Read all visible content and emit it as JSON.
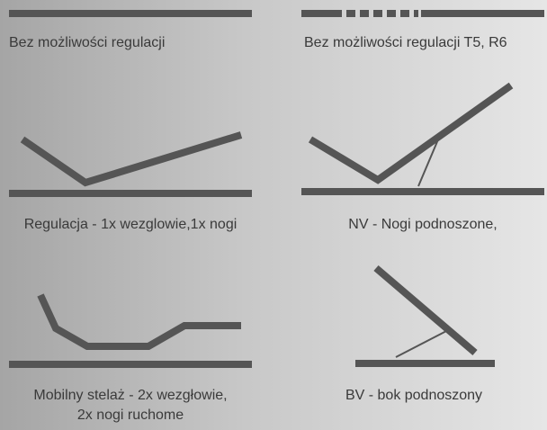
{
  "panels": [
    {
      "label": [
        "Bez możliwości regulacji"
      ]
    },
    {
      "label": [
        "Bez możliwości regulacji T5, R6"
      ]
    },
    {
      "label": [
        "Regulacja - 1x wezglowie,1x nogi"
      ]
    },
    {
      "label": [
        "NV - Nogi podnoszone,"
      ]
    },
    {
      "label": [
        "Mobilny stelaż - 2x wezgłowie,",
        "2x nogi ruchome"
      ]
    },
    {
      "label": [
        "BV - bok podnoszony"
      ]
    }
  ]
}
